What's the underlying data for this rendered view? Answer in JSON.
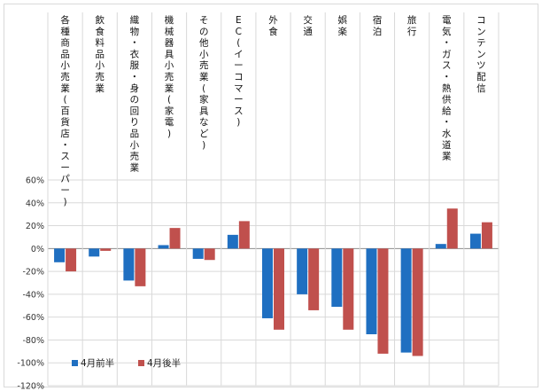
{
  "chart_data": {
    "type": "bar",
    "categories": [
      "各種商品小売業(百貨店・スーパー)",
      "飲食料品小売業",
      "織物・衣服・身の回り品小売業",
      "機械器具小売業(家電)",
      "その他小売業(家具など)",
      "EC(イーコマース)",
      "外食",
      "交通",
      "娯楽",
      "宿泊",
      "旅行",
      "電気・ガス・熱供給・水道業",
      "コンテンツ配信"
    ],
    "series": [
      {
        "name": "4月前半",
        "color": "#1f6fc1",
        "values": [
          -12,
          -7,
          -28,
          3,
          -9,
          12,
          -61,
          -40,
          -51,
          -75,
          -91,
          4,
          13
        ]
      },
      {
        "name": "4月後半",
        "color": "#c0504d",
        "values": [
          -20,
          -2,
          -33,
          18,
          -10,
          24,
          -71,
          -54,
          -71,
          -92,
          -94,
          35,
          23
        ]
      }
    ],
    "yticks": [
      "60%",
      "40%",
      "20%",
      "0%",
      "-20%",
      "-40%",
      "-60%",
      "-80%",
      "-100%",
      "-120%"
    ],
    "ylim": [
      -120,
      60
    ],
    "grid": true,
    "legend": "bottom-left"
  }
}
